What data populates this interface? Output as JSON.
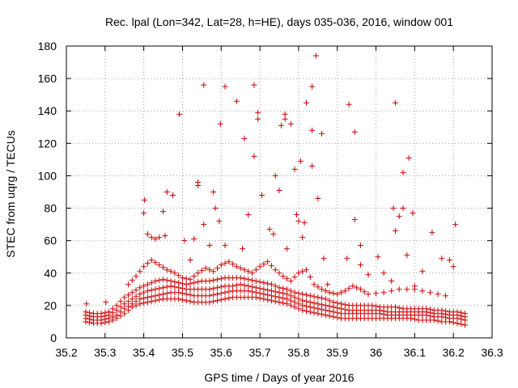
{
  "chart_data": {
    "type": "scatter",
    "title": "Rec. lpal (Lon=342, Lat=28, h=HE), days 035-036, 2016, window 001",
    "xlabel": "GPS time / Days of year 2016",
    "ylabel": "STEC from uqrg / TECUs",
    "xlim": [
      35.2,
      36.3
    ],
    "ylim": [
      0,
      180
    ],
    "x_ticks": [
      35.2,
      35.3,
      35.4,
      35.5,
      35.6,
      35.7,
      35.8,
      35.9,
      36,
      36.1,
      36.2,
      36.3
    ],
    "x_tick_labels": [
      "35.2",
      "35.3",
      "35.4",
      "35.5",
      "35.6",
      "35.7",
      "35.8",
      "35.9",
      "36",
      "36.1",
      "36.2",
      "36.3"
    ],
    "y_ticks": [
      0,
      20,
      40,
      60,
      80,
      100,
      120,
      140,
      160,
      180
    ],
    "y_tick_labels": [
      "0",
      "20",
      "40",
      "60",
      "80",
      "100",
      "120",
      "140",
      "160",
      "180"
    ],
    "grid": true,
    "marker": "plus",
    "series_color": "#cc0000",
    "outliers": [
      [
        35.252,
        21
      ],
      [
        35.302,
        22
      ],
      [
        35.402,
        85
      ],
      [
        35.4,
        77
      ],
      [
        35.41,
        64
      ],
      [
        35.42,
        62
      ],
      [
        35.43,
        61
      ],
      [
        35.44,
        62
      ],
      [
        35.45,
        78
      ],
      [
        35.46,
        90
      ],
      [
        35.475,
        88
      ],
      [
        35.455,
        63
      ],
      [
        35.492,
        138
      ],
      [
        35.505,
        60
      ],
      [
        35.52,
        48
      ],
      [
        35.53,
        61
      ],
      [
        35.54,
        96
      ],
      [
        35.54,
        94
      ],
      [
        35.555,
        156
      ],
      [
        35.555,
        70
      ],
      [
        35.57,
        57
      ],
      [
        35.58,
        90
      ],
      [
        35.585,
        80
      ],
      [
        35.595,
        72
      ],
      [
        35.598,
        132
      ],
      [
        35.61,
        155
      ],
      [
        35.61,
        57
      ],
      [
        35.64,
        146
      ],
      [
        35.655,
        55
      ],
      [
        35.66,
        123
      ],
      [
        35.67,
        76
      ],
      [
        35.685,
        156
      ],
      [
        35.685,
        112
      ],
      [
        35.695,
        139
      ],
      [
        35.695,
        135
      ],
      [
        35.705,
        88
      ],
      [
        35.725,
        67
      ],
      [
        35.735,
        64
      ],
      [
        35.74,
        100
      ],
      [
        35.75,
        91
      ],
      [
        35.755,
        131
      ],
      [
        35.765,
        138
      ],
      [
        35.765,
        135
      ],
      [
        35.77,
        55
      ],
      [
        35.78,
        132
      ],
      [
        35.79,
        104
      ],
      [
        35.795,
        76
      ],
      [
        35.8,
        72
      ],
      [
        35.805,
        109
      ],
      [
        35.81,
        62
      ],
      [
        35.815,
        71
      ],
      [
        35.82,
        145
      ],
      [
        35.835,
        128
      ],
      [
        35.835,
        106
      ],
      [
        35.835,
        155
      ],
      [
        35.845,
        174
      ],
      [
        35.85,
        86
      ],
      [
        35.86,
        126
      ],
      [
        35.865,
        49
      ],
      [
        35.875,
        33
      ],
      [
        35.925,
        49
      ],
      [
        35.93,
        144
      ],
      [
        35.945,
        73
      ],
      [
        35.945,
        127
      ],
      [
        35.96,
        57
      ],
      [
        35.96,
        45
      ],
      [
        35.98,
        39
      ],
      [
        36.005,
        50
      ],
      [
        36.02,
        40
      ],
      [
        36.04,
        35
      ],
      [
        36.045,
        80
      ],
      [
        36.05,
        145
      ],
      [
        36.05,
        66
      ],
      [
        36.06,
        75
      ],
      [
        36.07,
        102
      ],
      [
        36.07,
        80
      ],
      [
        36.08,
        51
      ],
      [
        36.085,
        111
      ],
      [
        36.095,
        77
      ],
      [
        36.1,
        32
      ],
      [
        36.12,
        41
      ],
      [
        36.145,
        65
      ],
      [
        36.17,
        49
      ],
      [
        36.19,
        48
      ],
      [
        36.2,
        44
      ],
      [
        36.205,
        70
      ]
    ],
    "bands": [
      {
        "x": [
          35.25,
          35.27,
          35.29,
          35.31,
          35.33,
          35.35,
          35.37,
          35.39,
          35.41,
          35.43,
          35.45,
          35.47,
          35.49,
          35.51,
          35.53,
          35.55,
          35.57,
          35.59,
          35.61,
          35.63,
          35.65,
          35.67,
          35.69,
          35.71,
          35.73,
          35.75,
          35.77,
          35.79,
          35.81,
          35.83,
          35.85,
          35.87,
          35.89,
          35.91,
          35.93,
          35.95,
          35.97,
          35.99,
          36.01,
          36.03,
          36.05,
          36.07,
          36.09,
          36.11,
          36.13,
          36.15,
          36.17,
          36.19,
          36.21,
          36.23
        ],
        "y": [
          10,
          9,
          9,
          10,
          12,
          15,
          19,
          21,
          22,
          23,
          24,
          24,
          24,
          23,
          22,
          22,
          22,
          23,
          24,
          25,
          25,
          25,
          25,
          24,
          23,
          22,
          21,
          19,
          17,
          16,
          15,
          14,
          13,
          12,
          12,
          12,
          12,
          12,
          12,
          12,
          12,
          12,
          12,
          11,
          11,
          11,
          10,
          10,
          9,
          8
        ]
      },
      {
        "x": [
          35.25,
          35.27,
          35.29,
          35.31,
          35.33,
          35.35,
          35.37,
          35.39,
          35.41,
          35.43,
          35.45,
          35.47,
          35.49,
          35.51,
          35.53,
          35.55,
          35.57,
          35.59,
          35.61,
          35.63,
          35.65,
          35.67,
          35.69,
          35.71,
          35.73,
          35.75,
          35.77,
          35.79,
          35.81,
          35.83,
          35.85,
          35.87,
          35.89,
          35.91,
          35.93,
          35.95,
          35.97,
          35.99,
          36.01,
          36.03,
          36.05,
          36.07,
          36.09,
          36.11,
          36.13,
          36.15,
          36.17,
          36.19,
          36.21,
          36.23
        ],
        "y": [
          12,
          11,
          11,
          12,
          14,
          18,
          21,
          24,
          25,
          26,
          27,
          28,
          28,
          27,
          26,
          26,
          26,
          27,
          28,
          29,
          29,
          29,
          28,
          27,
          26,
          25,
          24,
          22,
          20,
          19,
          18,
          17,
          16,
          15,
          15,
          15,
          15,
          15,
          15,
          14,
          14,
          14,
          14,
          14,
          14,
          13,
          13,
          12,
          12,
          11
        ]
      },
      {
        "x": [
          35.25,
          35.27,
          35.29,
          35.31,
          35.33,
          35.35,
          35.37,
          35.39,
          35.41,
          35.43,
          35.45,
          35.47,
          35.49,
          35.51,
          35.53,
          35.55,
          35.57,
          35.59,
          35.61,
          35.63,
          35.65,
          35.67,
          35.69,
          35.71,
          35.73,
          35.75,
          35.77,
          35.79,
          35.81,
          35.83,
          35.85,
          35.87,
          35.89,
          35.91,
          35.93,
          35.95,
          35.97,
          35.99,
          36.01,
          36.03,
          36.05,
          36.07,
          36.09,
          36.11,
          36.13,
          36.15,
          36.17,
          36.19,
          36.21,
          36.23
        ],
        "y": [
          14,
          13,
          13,
          14,
          17,
          21,
          24,
          27,
          29,
          30,
          31,
          32,
          31,
          30,
          30,
          30,
          30,
          31,
          32,
          32,
          33,
          32,
          31,
          30,
          29,
          28,
          27,
          25,
          23,
          22,
          21,
          20,
          19,
          18,
          17,
          17,
          17,
          17,
          17,
          16,
          16,
          16,
          16,
          16,
          16,
          15,
          15,
          14,
          14,
          13
        ]
      },
      {
        "x": [
          35.25,
          35.27,
          35.29,
          35.31,
          35.33,
          35.35,
          35.37,
          35.39,
          35.41,
          35.43,
          35.45,
          35.47,
          35.49,
          35.51,
          35.53,
          35.55,
          35.57,
          35.59,
          35.61,
          35.63,
          35.65,
          35.67,
          35.69,
          35.71,
          35.73,
          35.75,
          35.77,
          35.79,
          35.81,
          35.83,
          35.85,
          35.87,
          35.89,
          35.91,
          35.93,
          35.95,
          35.97,
          35.99,
          36.01,
          36.03,
          36.05,
          36.07,
          36.09,
          36.11,
          36.13,
          36.15,
          36.17,
          36.19,
          36.21,
          36.23
        ],
        "y": [
          16,
          15,
          15,
          16,
          20,
          25,
          28,
          31,
          33,
          35,
          36,
          35,
          34,
          33,
          34,
          35,
          35,
          36,
          37,
          37,
          37,
          36,
          35,
          34,
          33,
          31,
          30,
          28,
          27,
          26,
          25,
          24,
          22,
          21,
          20,
          20,
          20,
          20,
          19,
          19,
          19,
          18,
          18,
          18,
          18,
          17,
          17,
          16,
          16,
          15
        ]
      },
      {
        "x": [
          35.36,
          35.38,
          35.4,
          35.42,
          35.44,
          35.46,
          35.48,
          35.5,
          35.52,
          35.54,
          35.56,
          35.58,
          35.6,
          35.62,
          35.64,
          35.66,
          35.68,
          35.7,
          35.72,
          35.74,
          35.76,
          35.78,
          35.8,
          35.82,
          35.84,
          35.86,
          35.88,
          35.9,
          35.92,
          35.94,
          35.96,
          35.98,
          36.02,
          36.06,
          36.1,
          36.14,
          36.18
        ],
        "y": [
          33,
          38,
          44,
          48,
          45,
          42,
          40,
          37,
          36,
          40,
          43,
          41,
          45,
          47,
          44,
          42,
          40,
          44,
          47,
          42,
          38,
          35,
          40,
          42,
          33,
          30,
          28,
          27,
          29,
          32,
          30,
          27,
          28,
          30,
          30,
          28,
          26
        ]
      }
    ]
  }
}
